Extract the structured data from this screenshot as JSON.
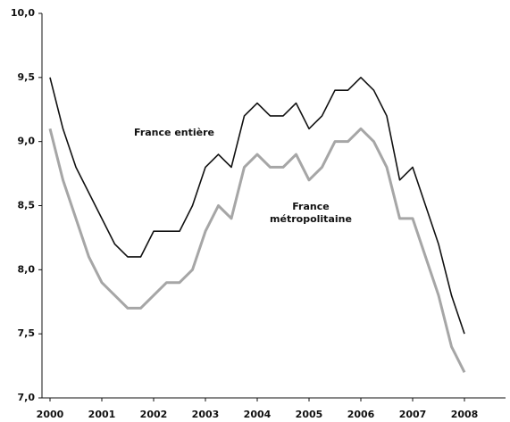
{
  "chart_data": {
    "type": "line",
    "x": [
      2000,
      2000.25,
      2000.5,
      2000.75,
      2001,
      2001.25,
      2001.5,
      2001.75,
      2002,
      2002.25,
      2002.5,
      2002.75,
      2003,
      2003.25,
      2003.5,
      2003.75,
      2004,
      2004.25,
      2004.5,
      2004.75,
      2005,
      2005.25,
      2005.5,
      2005.75,
      2006,
      2006.25,
      2006.5,
      2006.75,
      2007,
      2007.25,
      2007.5,
      2007.75,
      2008
    ],
    "series": [
      {
        "name": "France entière",
        "color": "#111111",
        "values": [
          9.5,
          9.1,
          8.8,
          8.6,
          8.4,
          8.2,
          8.1,
          8.1,
          8.3,
          8.3,
          8.3,
          8.5,
          8.8,
          8.9,
          8.8,
          9.2,
          9.3,
          9.2,
          9.2,
          9.3,
          9.1,
          9.2,
          9.4,
          9.4,
          9.5,
          9.4,
          9.2,
          8.7,
          8.8,
          8.5,
          8.2,
          7.8,
          7.5
        ]
      },
      {
        "name": "France métropolitaine",
        "color": "#a6a6a6",
        "values": [
          9.1,
          8.7,
          8.4,
          8.1,
          7.9,
          7.8,
          7.7,
          7.7,
          7.8,
          7.9,
          7.9,
          8.0,
          8.3,
          8.5,
          8.4,
          8.8,
          8.9,
          8.8,
          8.8,
          8.9,
          8.7,
          8.8,
          9.0,
          9.0,
          9.1,
          9.0,
          8.8,
          8.4,
          8.4,
          8.1,
          7.8,
          7.4,
          7.2
        ]
      }
    ],
    "xlim": [
      1999.845,
      2008.793
    ],
    "xticks": [
      2000,
      2001,
      2002,
      2003,
      2004,
      2005,
      2006,
      2007,
      2008
    ],
    "ylim": [
      7,
      10
    ],
    "yticks": [
      {
        "value": 7,
        "label": "7,0"
      },
      {
        "value": 7.5,
        "label": "7,5"
      },
      {
        "value": 8,
        "label": "8,0"
      },
      {
        "value": 8.5,
        "label": "8,5"
      },
      {
        "value": 9,
        "label": "9,0"
      },
      {
        "value": 9.5,
        "label": "9,5"
      },
      {
        "value": 10,
        "label": "10,0"
      }
    ]
  }
}
